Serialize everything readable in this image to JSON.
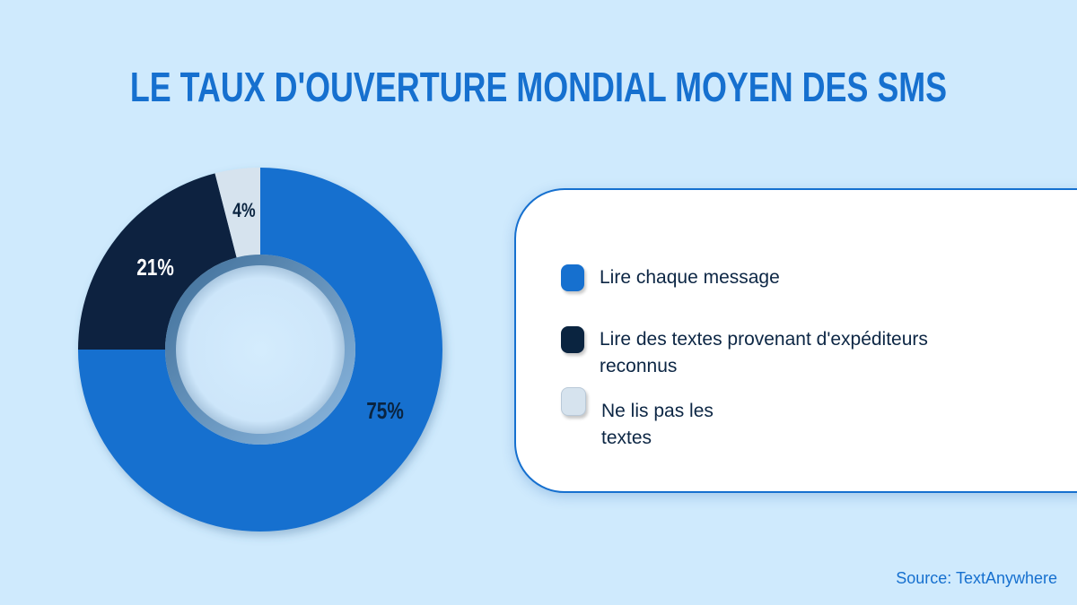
{
  "title": "LE TAUX D'OUVERTURE MONDIAL MOYEN DES SMS",
  "source": "Source: TextAnywhere",
  "colors": {
    "background": "#cfeafd",
    "accent": "#1670cf",
    "segment_read_all": "#1670cf",
    "segment_known_senders": "#0a2440",
    "segment_not_read": "#d6e3ee",
    "legend_text": "#0c2644"
  },
  "legend": {
    "items": [
      {
        "label_line1": "Lire chaque message",
        "label_line2": "",
        "color": "#1670cf"
      },
      {
        "label_line1": "Lire des textes provenant d'expéditeurs",
        "label_line2": "reconnus",
        "color": "#0a2440"
      },
      {
        "label_line1": "Ne lis pas les",
        "label_line2": "textes",
        "color": "#d6e3ee"
      }
    ]
  },
  "labels": {
    "read_all": "75%",
    "known_senders": "21%",
    "not_read": "4%"
  },
  "chart_data": {
    "type": "pie",
    "variant": "donut",
    "title": "LE TAUX D'OUVERTURE MONDIAL MOYEN DES SMS",
    "categories": [
      "Lire chaque message",
      "Lire des textes provenant d'expéditeurs reconnus",
      "Ne lis pas les textes"
    ],
    "values": [
      75,
      21,
      4
    ],
    "unit": "%",
    "data_labels": [
      "75%",
      "21%",
      "4%"
    ],
    "colors": [
      "#1670cf",
      "#0a2440",
      "#d6e3ee"
    ],
    "legend_position": "right",
    "start_angle": "12 o'clock, clockwise",
    "source": "Source: TextAnywhere"
  }
}
